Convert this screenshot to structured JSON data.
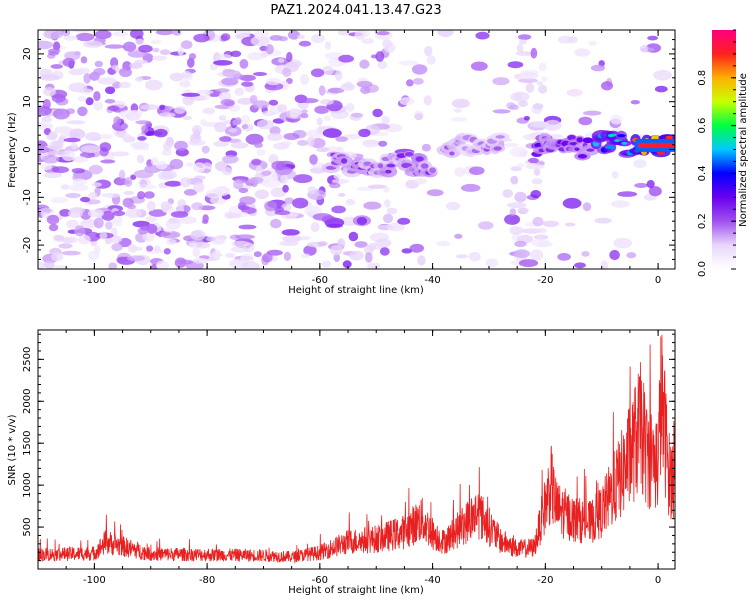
{
  "title": "PAZ1.2024.041.13.47.G23",
  "chart_data": [
    {
      "type": "heatmap",
      "xlabel": "Height of straight line (km)",
      "ylabel": "Frequency (Hz)",
      "xlim": [
        -110,
        3
      ],
      "ylim": [
        -25,
        25
      ],
      "x_ticks": [
        -100,
        -80,
        -60,
        -40,
        -20,
        0
      ],
      "y_ticks": [
        -20,
        -10,
        0,
        10,
        20
      ],
      "colorbar": {
        "label": "Normalized spectral amplitude",
        "range": [
          0,
          1
        ],
        "ticks": [
          0.0,
          0.2,
          0.4,
          0.6,
          0.8
        ],
        "colormap": [
          "#ffffff",
          "#e8d6fb",
          "#a050f0",
          "#6a00f0",
          "#0000ff",
          "#00c8ff",
          "#00ff40",
          "#c8ff00",
          "#ffb000",
          "#ff2020",
          "#ff0080"
        ]
      },
      "features": [
        {
          "x": [
            -58,
            -40
          ],
          "freq": -3,
          "amplitude": 0.25
        },
        {
          "x": [
            -38,
            -28
          ],
          "freq": 1,
          "amplitude": 0.2
        },
        {
          "x": [
            -22,
            -12
          ],
          "freq": 0.5,
          "amplitude": 0.3
        },
        {
          "x": [
            -11,
            -5
          ],
          "freq": 1,
          "amplitude": 0.5
        },
        {
          "x": [
            -4,
            2
          ],
          "freq": 0.8,
          "amplitude": 0.9
        }
      ]
    },
    {
      "type": "line",
      "xlabel": "Height of straight line (km)",
      "ylabel": "SNR (10 * v/v)",
      "xlim": [
        -110,
        3
      ],
      "ylim": [
        0,
        2850
      ],
      "x_ticks": [
        -100,
        -80,
        -60,
        -40,
        -20,
        0
      ],
      "y_ticks": [
        500,
        1000,
        1500,
        2000,
        2500
      ],
      "color": "#e82020",
      "series": [
        {
          "x": [
            -110,
            -100,
            -98,
            -90,
            -80,
            -70,
            -65,
            -60,
            -55,
            -50,
            -45,
            -42,
            -40,
            -38,
            -35,
            -32,
            -30,
            -28,
            -25,
            -22,
            -20,
            -19,
            -18,
            -15,
            -12,
            -10,
            -8,
            -6,
            -4,
            -3,
            -2,
            0,
            0.5,
            1,
            2,
            3
          ],
          "values": [
            200,
            220,
            380,
            210,
            200,
            190,
            170,
            230,
            380,
            420,
            520,
            700,
            500,
            380,
            580,
            800,
            600,
            400,
            280,
            300,
            900,
            1200,
            850,
            700,
            650,
            800,
            1100,
            1400,
            1800,
            2000,
            1600,
            1500,
            2400,
            2100,
            1300,
            1250
          ]
        }
      ]
    }
  ]
}
